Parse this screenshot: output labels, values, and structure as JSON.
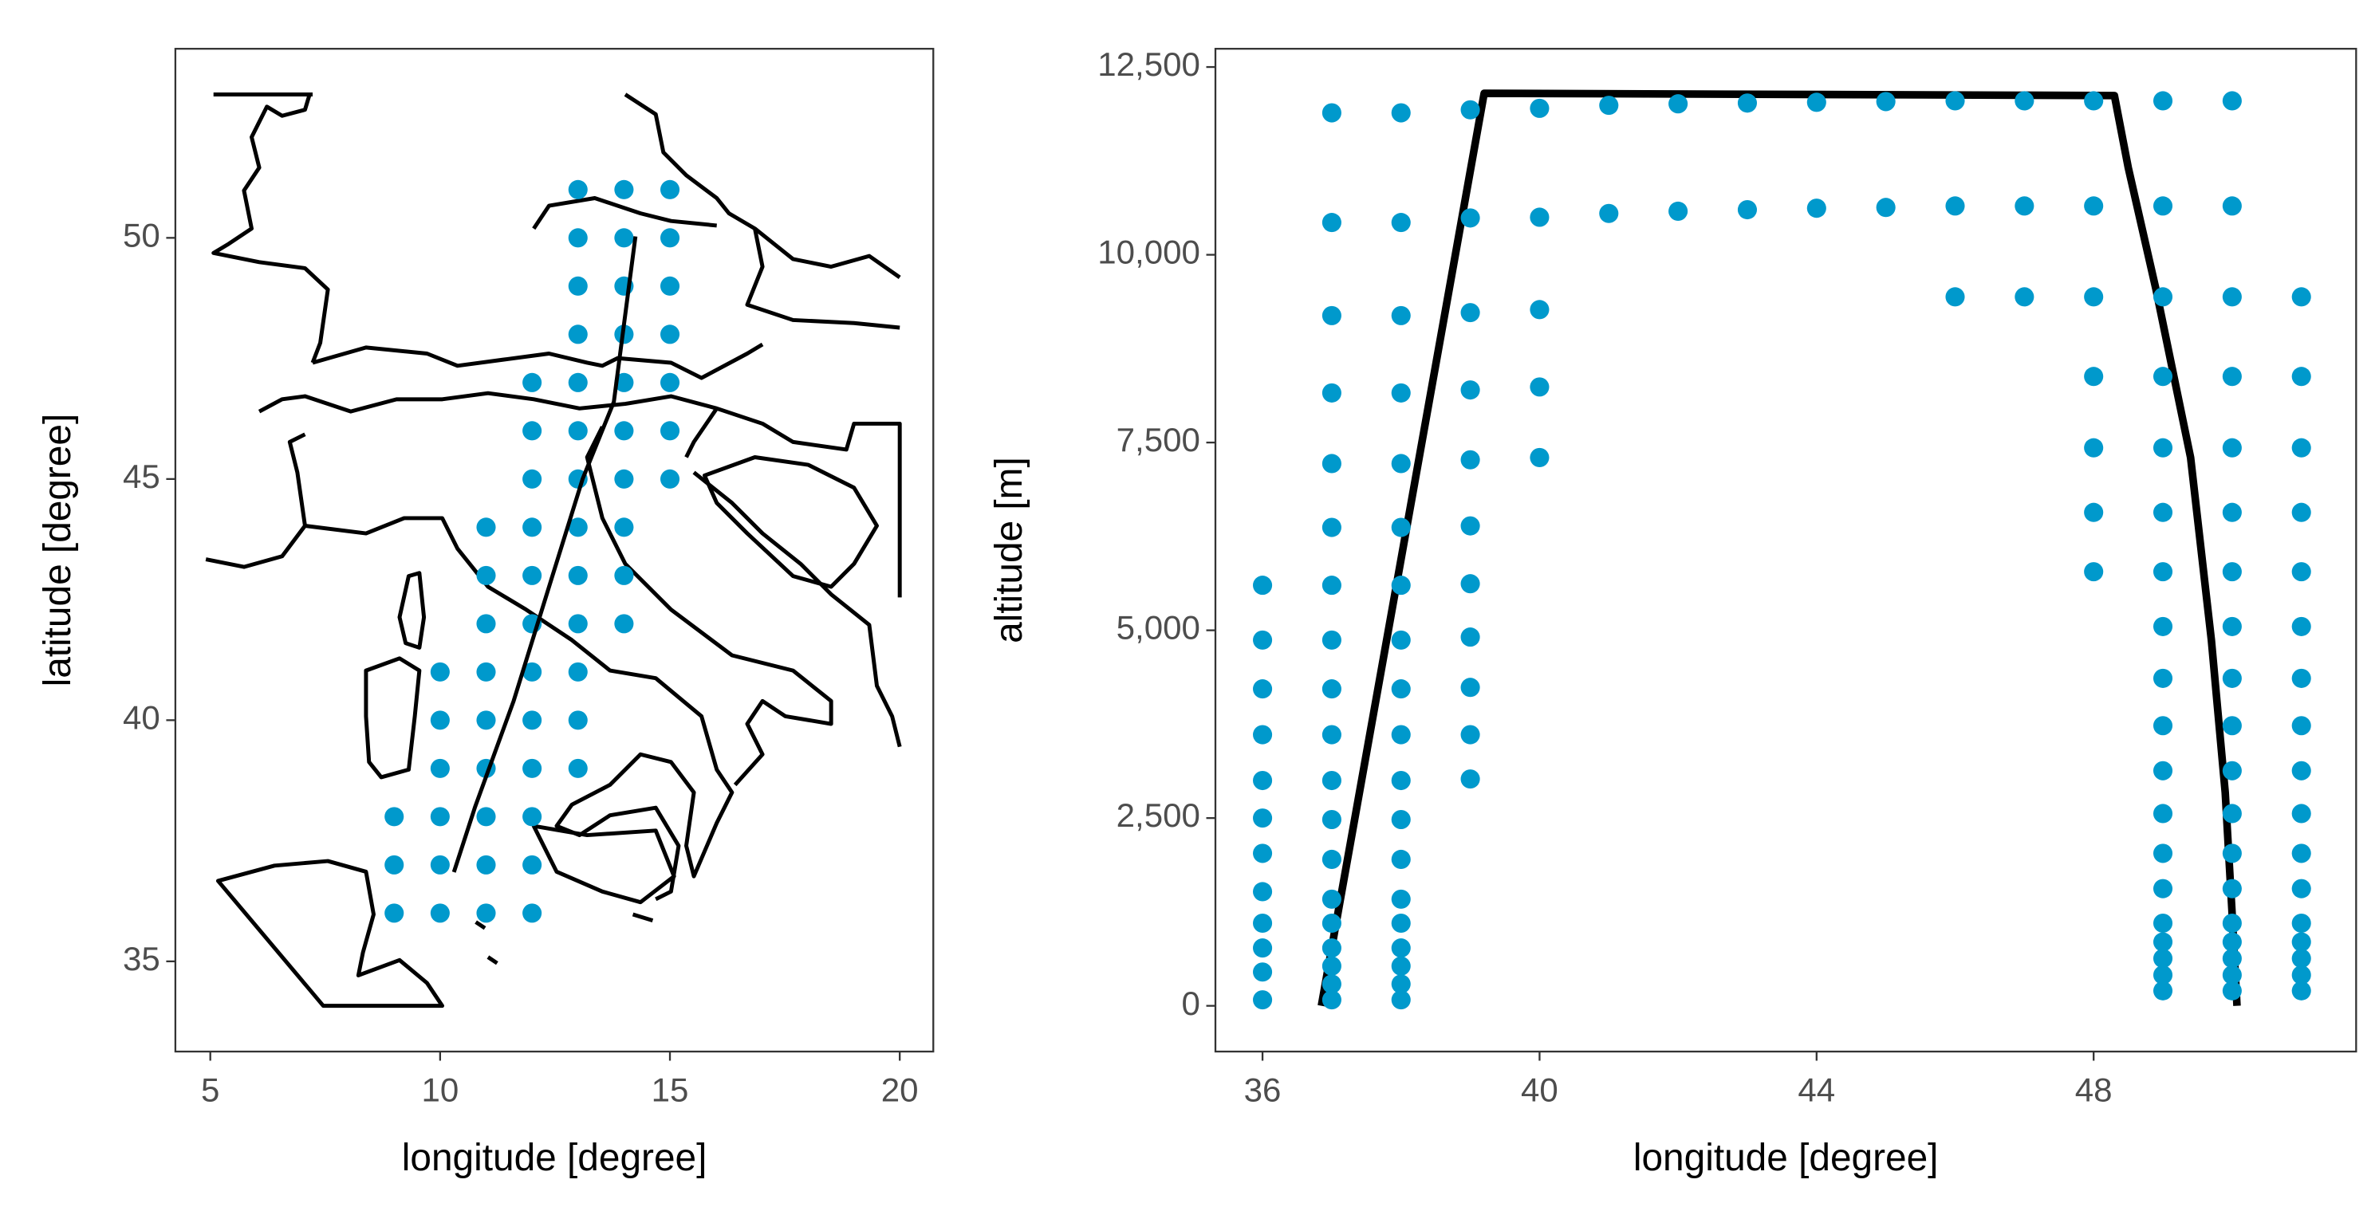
{
  "chart_data": [
    {
      "type": "scatter",
      "xlabel": "longitude [degree]",
      "ylabel": "latitude [degree]",
      "xlim": [
        4.24,
        20.73
      ],
      "ylim": [
        33.13,
        53.92
      ],
      "xticks": [
        5,
        10,
        15,
        20
      ],
      "yticks": [
        35,
        40,
        45,
        50
      ],
      "point_color": "#0099CC",
      "rows": [
        {
          "y": 51,
          "x": [
            13,
            14,
            15
          ]
        },
        {
          "y": 50,
          "x": [
            13,
            14,
            15
          ]
        },
        {
          "y": 49,
          "x": [
            13,
            14,
            15
          ]
        },
        {
          "y": 48,
          "x": [
            13,
            14,
            15
          ]
        },
        {
          "y": 47,
          "x": [
            12,
            13,
            14,
            15
          ]
        },
        {
          "y": 46,
          "x": [
            12,
            13,
            14,
            15
          ]
        },
        {
          "y": 45,
          "x": [
            12,
            13,
            14,
            15
          ]
        },
        {
          "y": 44,
          "x": [
            11,
            12,
            13,
            14
          ]
        },
        {
          "y": 43,
          "x": [
            11,
            12,
            13,
            14
          ]
        },
        {
          "y": 42,
          "x": [
            11,
            12,
            13,
            14
          ]
        },
        {
          "y": 41,
          "x": [
            10,
            11,
            12,
            13
          ]
        },
        {
          "y": 40,
          "x": [
            10,
            11,
            12,
            13
          ]
        },
        {
          "y": 39,
          "x": [
            10,
            11,
            12,
            13
          ]
        },
        {
          "y": 38,
          "x": [
            9,
            10,
            11,
            12
          ]
        },
        {
          "y": 37,
          "x": [
            9,
            10,
            11,
            12
          ]
        },
        {
          "y": 36,
          "x": [
            9,
            10,
            11,
            12
          ]
        }
      ],
      "track": {
        "color": "#000000",
        "x": [
          14.25,
          13.78,
          13.1,
          12.43,
          11.6,
          10.76,
          10.3
        ],
        "y": [
          50.03,
          46.6,
          45,
          42.95,
          40.4,
          38.2,
          36.85
        ]
      }
    },
    {
      "type": "scatter",
      "xlabel": "longitude [degree]",
      "ylabel": "altitude [m]",
      "xlim": [
        35.32,
        51.79
      ],
      "ylim": [
        -609,
        12743
      ],
      "xticks": [
        36,
        40,
        44,
        48
      ],
      "yticks": [
        0,
        {
          "value": 2500,
          "label": "2,500"
        },
        {
          "value": 5000,
          "label": "5,000"
        },
        {
          "value": 7500,
          "label": "7,500"
        },
        {
          "value": 10000,
          "label": "10,000"
        },
        {
          "value": 12500,
          "label": "12,500"
        }
      ],
      "point_color": "#0099CC",
      "columns": [
        {
          "x": 36,
          "y": [
            80,
            450,
            770,
            1100,
            1520,
            2030,
            2500,
            3000,
            3610,
            4220,
            4870,
            5600
          ]
        },
        {
          "x": 37,
          "y": [
            80,
            290,
            530,
            770,
            1100,
            1420,
            1950,
            2480,
            3000,
            3610,
            4220,
            4870,
            5600,
            6370,
            7220,
            8160,
            9190,
            10430,
            11890
          ]
        },
        {
          "x": 38,
          "y": [
            80,
            290,
            530,
            770,
            1100,
            1420,
            1950,
            2480,
            3000,
            3610,
            4220,
            4870,
            5600,
            6370,
            7220,
            8160,
            9190,
            10430,
            11890
          ]
        },
        {
          "x": 39,
          "y": [
            3020,
            3610,
            4240,
            4910,
            5620,
            6390,
            7270,
            8200,
            9230,
            10490,
            11930
          ]
        },
        {
          "x": 40,
          "y": [
            7300,
            8240,
            9270,
            10500,
            11950
          ]
        },
        {
          "x": 41,
          "y": [
            10550,
            11990
          ]
        },
        {
          "x": 42,
          "y": [
            10580,
            12010
          ]
        },
        {
          "x": 43,
          "y": [
            10600,
            12020
          ]
        },
        {
          "x": 44,
          "y": [
            10620,
            12030
          ]
        },
        {
          "x": 45,
          "y": [
            10630,
            12040
          ]
        },
        {
          "x": 46,
          "y": [
            9440,
            10650,
            12050
          ]
        },
        {
          "x": 47,
          "y": [
            9440,
            10650,
            12050
          ]
        },
        {
          "x": 48,
          "y": [
            5780,
            6570,
            7430,
            8380,
            9440,
            10650,
            12050
          ]
        },
        {
          "x": 49,
          "y": [
            200,
            410,
            630,
            850,
            1100,
            1560,
            2030,
            2560,
            3130,
            3730,
            4360,
            5050,
            5780,
            6570,
            7430,
            8380,
            9440,
            10650,
            12050
          ]
        },
        {
          "x": 50,
          "y": [
            200,
            410,
            630,
            850,
            1100,
            1560,
            2030,
            2560,
            3130,
            3730,
            4360,
            5050,
            5780,
            6570,
            7430,
            8380,
            9440,
            10650,
            12050
          ]
        },
        {
          "x": 51,
          "y": [
            200,
            410,
            630,
            850,
            1100,
            1560,
            2030,
            2560,
            3130,
            3730,
            4360,
            5050,
            5780,
            6570,
            7430,
            8380,
            9440
          ]
        }
      ],
      "track": {
        "color": "#000000",
        "x": [
          36.85,
          39.2,
          48.3,
          48.5,
          48.9,
          49.4,
          49.7,
          49.9,
          50.0,
          50.07
        ],
        "y": [
          0,
          12150,
          12120,
          11160,
          9540,
          7300,
          4870,
          2840,
          1220,
          0
        ]
      }
    }
  ]
}
